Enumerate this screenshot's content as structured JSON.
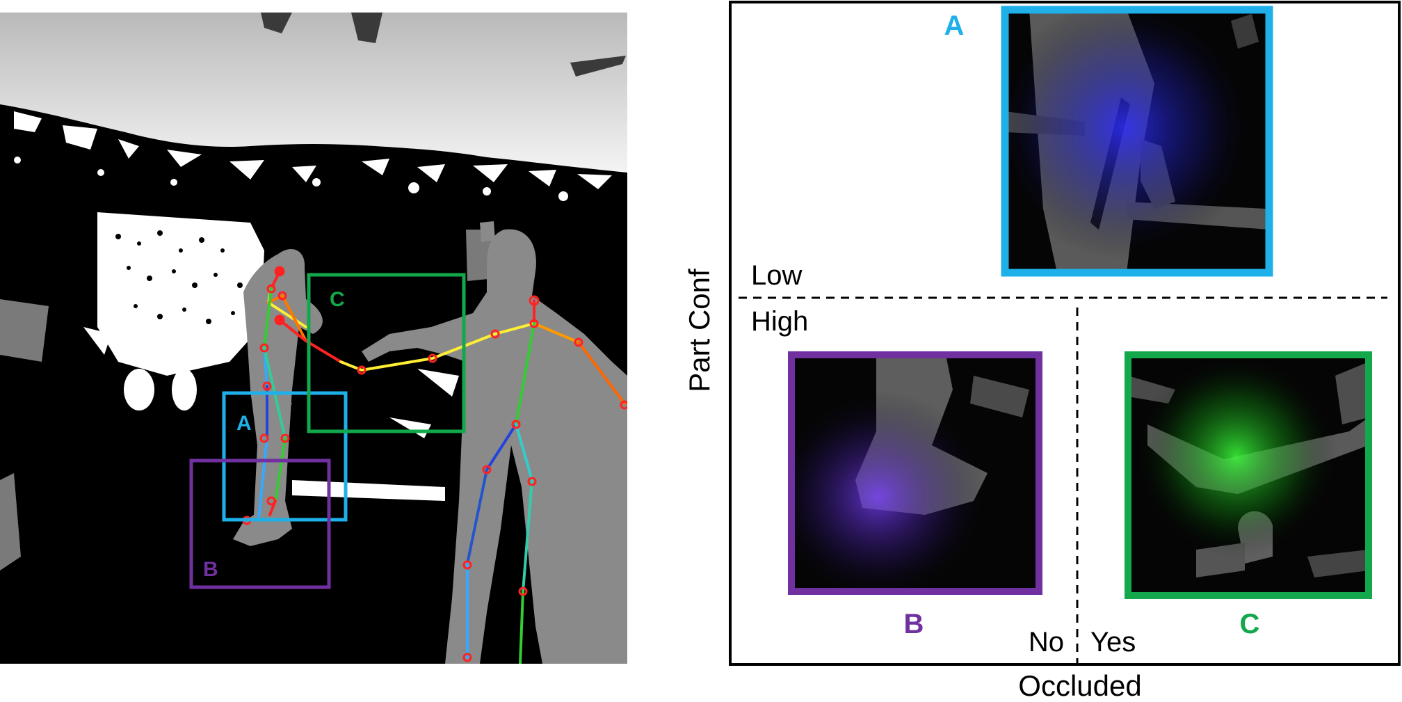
{
  "left_panel": {
    "box_labels": {
      "a": "A",
      "b": "B",
      "c": "C"
    }
  },
  "right_panel": {
    "crops": {
      "a": "A",
      "b": "B",
      "c": "C"
    },
    "y_axis": {
      "label": "Part Conf",
      "low": "Low",
      "high": "High"
    },
    "x_axis": {
      "label": "Occluded",
      "no": "No",
      "yes": "Yes"
    }
  },
  "colors": {
    "a": "#1fb0ea",
    "b": "#7030a0",
    "c": "#12a84b",
    "joint": "#ff2222"
  }
}
